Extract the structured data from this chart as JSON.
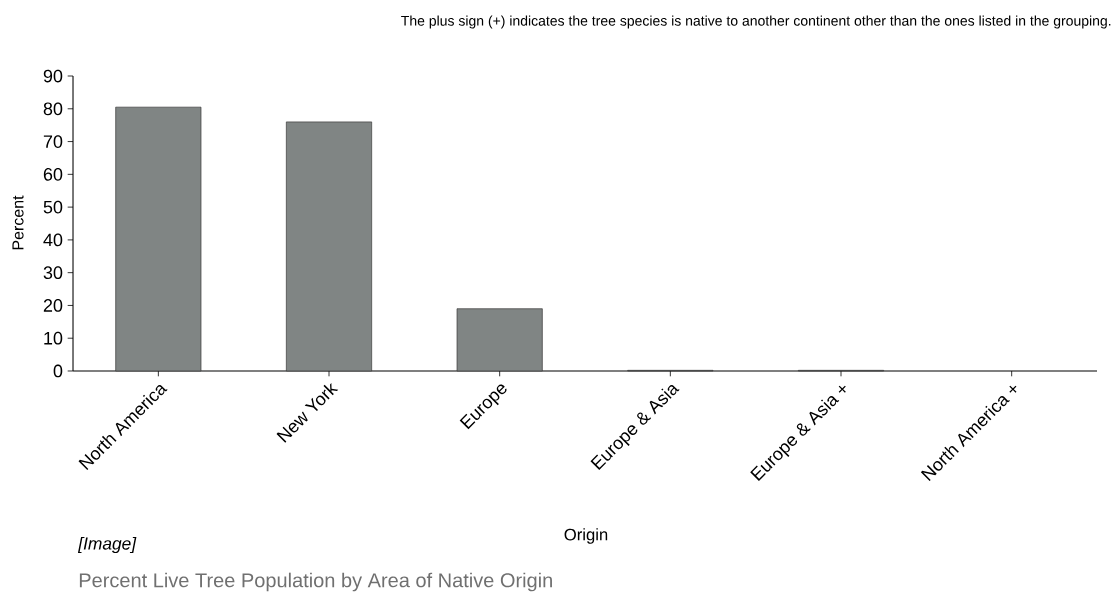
{
  "chart_data": {
    "type": "bar",
    "title": "Percent Live Tree Population by Area of Native Origin",
    "xlabel": "Origin",
    "ylabel": "Percent",
    "annotations": [
      "The plus sign (+) indicates the tree species is native to another continent other than the ones listed in the grouping.",
      "*[Image]*"
    ],
    "categories": [
      "North America",
      "New York",
      "Europe",
      "Europe & Asia",
      "Europe & Asia +",
      "North America +"
    ],
    "values": [
      80.5,
      76,
      19,
      0.2,
      0.2,
      null
    ],
    "color": "#808584",
    "ylim": [
      0,
      90
    ],
    "yticks": [
      0,
      10,
      20,
      30,
      40,
      50,
      60,
      70,
      80,
      90
    ],
    "grid": false
  }
}
